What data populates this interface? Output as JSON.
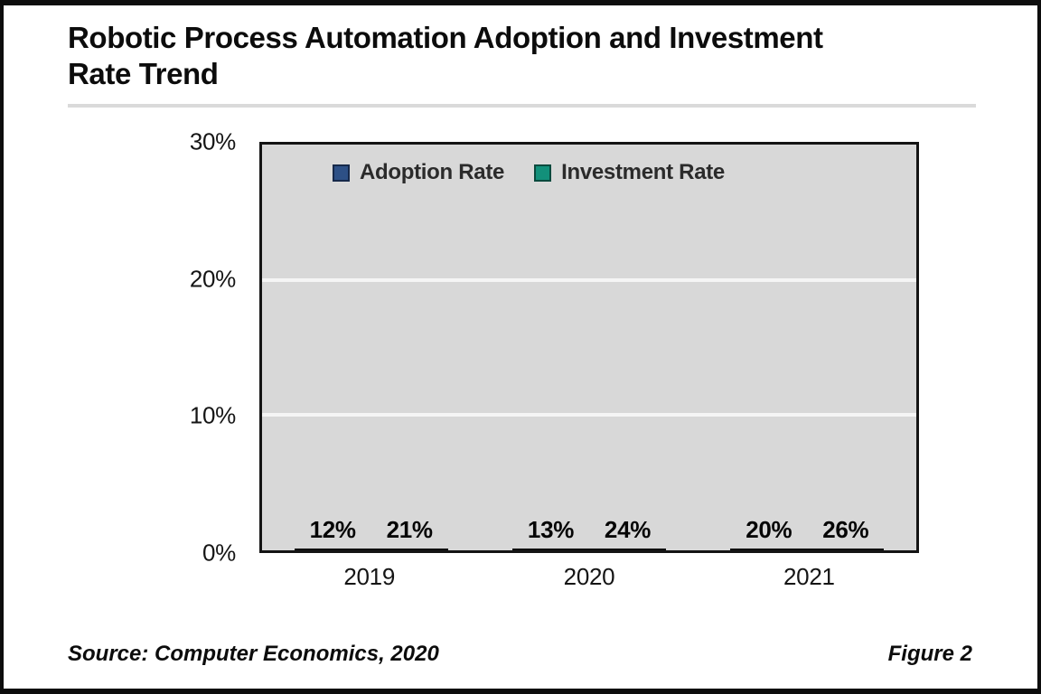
{
  "title": "Robotic Process Automation Adoption and Investment Rate Trend",
  "title_lines": [
    "Robotic Process Automation Adoption and Investment",
    "Rate Trend"
  ],
  "source_note": "Source: Computer Economics, 2020",
  "figure_label": "Figure 2",
  "chart_data": {
    "type": "bar",
    "categories": [
      "2019",
      "2020",
      "2021"
    ],
    "series": [
      {
        "name": "Adoption Rate",
        "values": [
          12,
          13,
          20
        ],
        "labels": [
          "12%",
          "13%",
          "20%"
        ],
        "color": "#2D5086",
        "marker_border": "#16294A"
      },
      {
        "name": "Investment Rate",
        "values": [
          21,
          24,
          26
        ],
        "labels": [
          "21%",
          "24%",
          "26%"
        ],
        "color": "#12907A",
        "marker_border": "#0A4A3E"
      }
    ],
    "ylim": [
      0,
      30
    ],
    "yticks": [
      0,
      10,
      20,
      30
    ],
    "ytick_labels": [
      "0%",
      "10%",
      "20%",
      "30%"
    ],
    "gridline_values": [
      10,
      20
    ],
    "grid_on": true,
    "legend_position": "top-inside",
    "plot_background": "#D8D8D8",
    "gridline_color": "#F5F5F5",
    "bar_border_color": "#0F0F0F"
  }
}
